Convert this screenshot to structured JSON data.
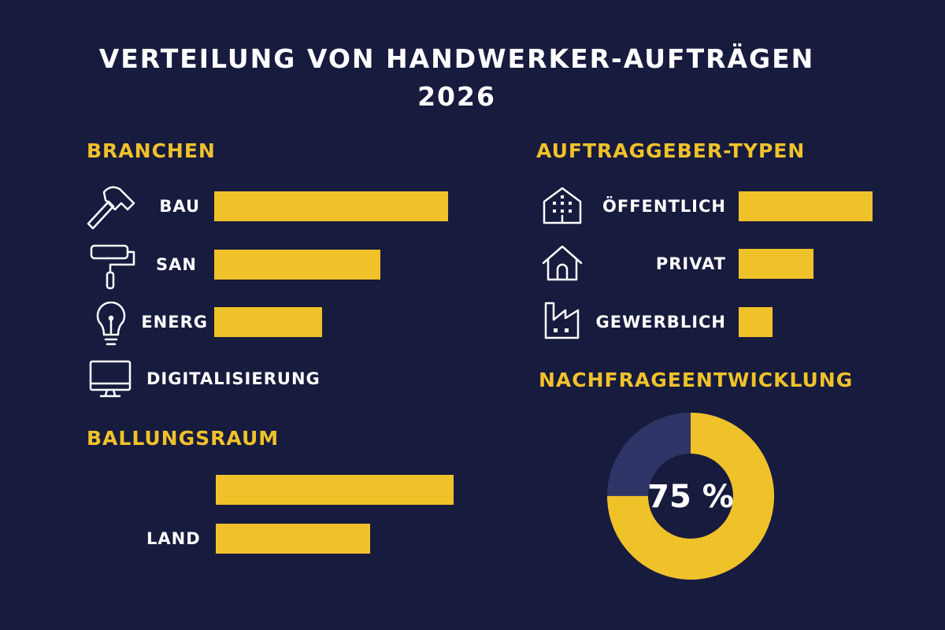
{
  "colors": {
    "background": "#171b3e",
    "accent": "#f0c22a",
    "donut_rest": "#2e3566",
    "text": "#ffffff"
  },
  "chart_data": [
    {
      "type": "bar",
      "orientation": "horizontal",
      "title": "BRANCHEN",
      "categories": [
        "BAU",
        "SAN",
        "ENERG",
        "DIGITALISIERUNG"
      ],
      "values": [
        100,
        71,
        46,
        0
      ],
      "icons": [
        "hammer-icon",
        "paint-roller-icon",
        "lightbulb-icon",
        "monitor-icon"
      ]
    },
    {
      "type": "bar",
      "orientation": "horizontal",
      "title": "BALLUNGSRAUM",
      "categories": [
        "",
        "LAND"
      ],
      "values": [
        100,
        65
      ]
    },
    {
      "type": "bar",
      "orientation": "horizontal",
      "title": "AUFTRAGGEBER-TYPEN",
      "categories": [
        "ÖFFENTLICH",
        "PRIVAT",
        "GEWERBLICH"
      ],
      "values": [
        100,
        56,
        25
      ],
      "icons": [
        "public-building-icon",
        "house-icon",
        "factory-icon"
      ]
    },
    {
      "type": "pie",
      "variant": "donut",
      "title": "NACHFRAGEENTWICKLUNG",
      "values": [
        75,
        25
      ],
      "center_label": "75 %"
    }
  ],
  "title_line1": "VERTEILUNG VON HANDWERKER-AUFTRÄGEN",
  "title_line2": "2026"
}
